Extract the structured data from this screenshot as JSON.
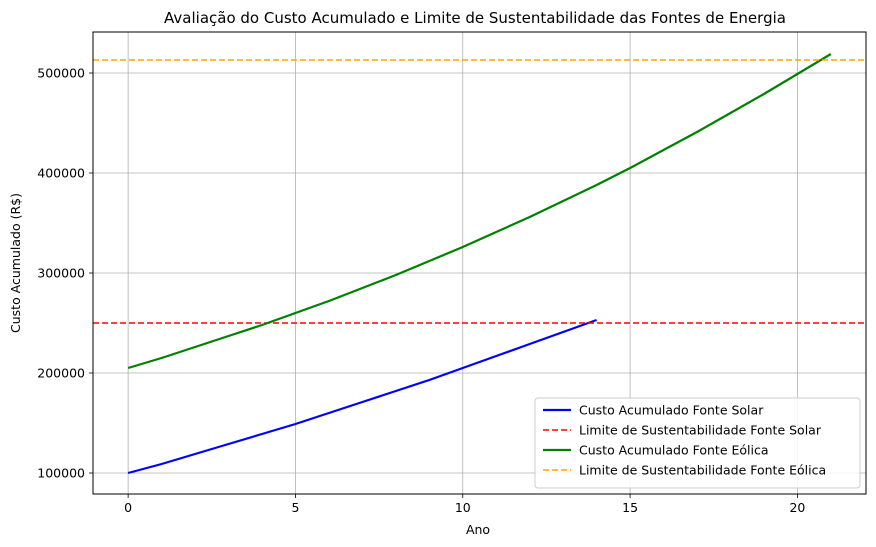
{
  "chart_data": {
    "type": "line",
    "title": "Avaliação do Custo Acumulado e Limite de Sustentabilidade das Fontes de Energia",
    "xlabel": "Ano",
    "ylabel": "Custo Acumulado (R$)",
    "xlim": [
      -1.05,
      22.05
    ],
    "ylim": [
      79000,
      541000
    ],
    "xticks": [
      0,
      5,
      10,
      15,
      20
    ],
    "yticks": [
      100000,
      200000,
      300000,
      400000,
      500000
    ],
    "grid": true,
    "legend_position": "lower-right",
    "series": [
      {
        "name": "Custo Acumulado Fonte Solar",
        "style": "solid",
        "color": "#0000ff",
        "x": [
          0,
          1,
          2,
          3,
          4,
          5,
          6,
          7,
          8,
          9,
          10,
          11,
          12,
          13,
          14
        ],
        "y": [
          100000,
          109000,
          119000,
          129000,
          139000,
          149000,
          160000,
          171000,
          182000,
          193000,
          205000,
          217000,
          229000,
          241000,
          253000
        ]
      },
      {
        "name": "Limite de Sustentabilidade Fonte Solar",
        "style": "dashed",
        "color": "#ff0000",
        "hline": 250000
      },
      {
        "name": "Custo Acumulado Fonte Eólica",
        "style": "solid",
        "color": "#008000",
        "x": [
          0,
          1,
          2,
          3,
          4,
          5,
          6,
          7,
          8,
          9,
          10,
          11,
          12,
          13,
          14,
          15,
          16,
          17,
          18,
          19,
          20,
          21
        ],
        "y": [
          205000,
          215000,
          226000,
          237000,
          248000,
          260000,
          272000,
          285000,
          298000,
          312000,
          326000,
          341000,
          356000,
          372000,
          388000,
          405000,
          423000,
          441000,
          460000,
          479000,
          499000,
          519000
        ]
      },
      {
        "name": "Limite de Sustentabilidade Fonte Eólica",
        "style": "dashed",
        "color": "#ffa500",
        "hline": 513000
      }
    ]
  }
}
